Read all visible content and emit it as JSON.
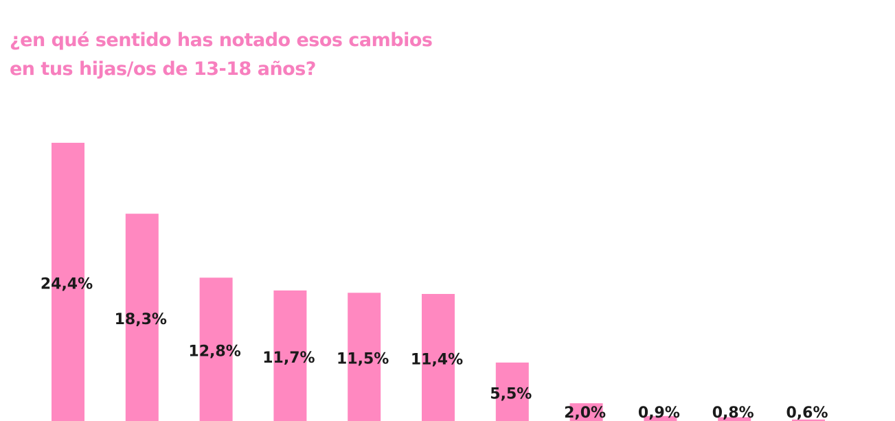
{
  "chart_data": {
    "type": "bar",
    "title": "¿en qué sentido has notado esos cambios en tus hijas/os de 13-18 años?",
    "values": [
      24.4,
      18.3,
      12.8,
      11.7,
      11.5,
      11.4,
      5.5,
      2.0,
      0.9,
      0.8,
      0.6
    ],
    "value_labels": [
      "24,4%",
      "18,3%",
      "12,8%",
      "11,7%",
      "11,5%",
      "11,4%",
      "5,5%",
      "2,0%",
      "0,9%",
      "0,8%",
      "0,6%"
    ],
    "color": "#ff88c0"
  }
}
